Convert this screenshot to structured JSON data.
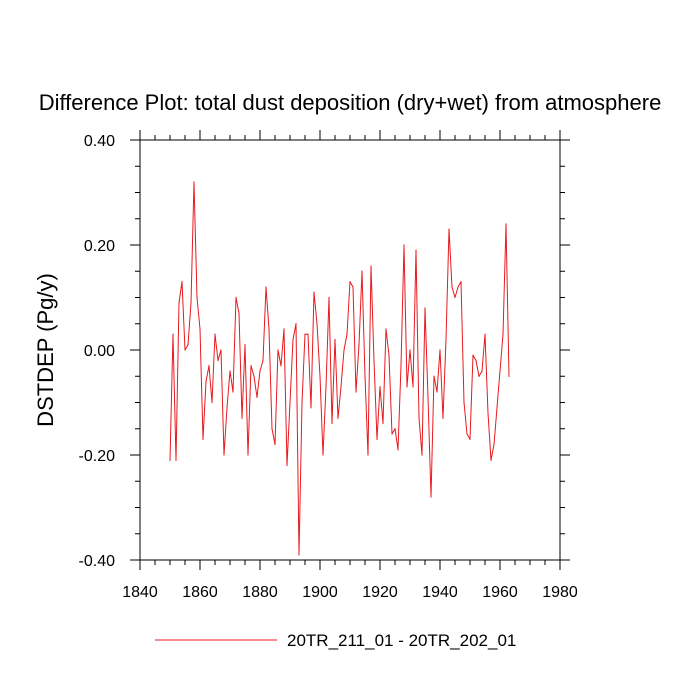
{
  "chart_data": {
    "type": "line",
    "title": "Difference Plot: total dust deposition (dry+wet) from atmosphere",
    "xlabel": "",
    "ylabel": "DSTDEP  (Pg/y)",
    "xlim": [
      1840,
      1980
    ],
    "ylim": [
      -0.4,
      0.4
    ],
    "xticks": [
      1840,
      1860,
      1880,
      1900,
      1920,
      1940,
      1960,
      1980
    ],
    "xtick_labels": [
      "1840",
      "1860",
      "1880",
      "1900",
      "1920",
      "1940",
      "1960",
      "1980"
    ],
    "yticks": [
      -0.4,
      -0.2,
      0.0,
      0.2,
      0.4
    ],
    "ytick_labels": [
      "-0.40",
      "-0.20",
      "0.00",
      "0.20",
      "0.40"
    ],
    "grid": false,
    "legend_position": "bottom-center",
    "series": [
      {
        "name": "20TR_211_01 - 20TR_202_01",
        "color": "#e8191e",
        "x": [
          1850,
          1851,
          1852,
          1853,
          1854,
          1855,
          1856,
          1857,
          1858,
          1859,
          1860,
          1861,
          1862,
          1863,
          1864,
          1865,
          1866,
          1867,
          1868,
          1869,
          1870,
          1871,
          1872,
          1873,
          1874,
          1875,
          1876,
          1877,
          1878,
          1879,
          1880,
          1881,
          1882,
          1883,
          1884,
          1885,
          1886,
          1887,
          1888,
          1889,
          1890,
          1891,
          1892,
          1893,
          1894,
          1895,
          1896,
          1897,
          1898,
          1899,
          1900,
          1901,
          1902,
          1903,
          1904,
          1905,
          1906,
          1907,
          1908,
          1909,
          1910,
          1911,
          1912,
          1913,
          1914,
          1915,
          1916,
          1917,
          1918,
          1919,
          1920,
          1921,
          1922,
          1923,
          1924,
          1925,
          1926,
          1927,
          1928,
          1929,
          1930,
          1931,
          1932,
          1933,
          1934,
          1935,
          1936,
          1937,
          1938,
          1939,
          1940,
          1941,
          1942,
          1943,
          1944,
          1945,
          1946,
          1947,
          1948,
          1949,
          1950,
          1951,
          1952,
          1953,
          1954,
          1955,
          1956,
          1957,
          1958,
          1959,
          1960,
          1961,
          1962,
          1963
        ],
        "values": [
          -0.21,
          0.03,
          -0.21,
          0.09,
          0.13,
          0.0,
          0.01,
          0.09,
          0.32,
          0.1,
          0.04,
          -0.17,
          -0.06,
          -0.03,
          -0.1,
          0.03,
          -0.02,
          0.0,
          -0.2,
          -0.11,
          -0.04,
          -0.08,
          0.1,
          0.07,
          -0.13,
          0.01,
          -0.2,
          -0.03,
          -0.05,
          -0.09,
          -0.04,
          -0.02,
          0.12,
          0.04,
          -0.15,
          -0.18,
          0.0,
          -0.03,
          0.04,
          -0.22,
          -0.1,
          0.02,
          0.05,
          -0.39,
          -0.1,
          0.03,
          0.03,
          -0.11,
          0.11,
          0.05,
          -0.05,
          -0.2,
          -0.07,
          0.1,
          -0.14,
          0.02,
          -0.13,
          -0.07,
          0.0,
          0.03,
          0.13,
          0.12,
          -0.08,
          0.01,
          0.15,
          -0.05,
          -0.2,
          0.16,
          -0.02,
          -0.17,
          -0.07,
          -0.14,
          0.04,
          -0.01,
          -0.16,
          -0.15,
          -0.19,
          -0.03,
          0.2,
          -0.07,
          0.0,
          -0.07,
          0.19,
          -0.13,
          -0.2,
          0.08,
          -0.09,
          -0.28,
          -0.05,
          -0.08,
          0.0,
          -0.13,
          0.02,
          0.23,
          0.12,
          0.1,
          0.12,
          0.13,
          -0.1,
          -0.16,
          -0.17,
          -0.01,
          -0.02,
          -0.05,
          -0.04,
          0.03,
          -0.12,
          -0.21,
          -0.18,
          -0.11,
          -0.04,
          0.03,
          0.24,
          -0.05
        ]
      }
    ]
  }
}
